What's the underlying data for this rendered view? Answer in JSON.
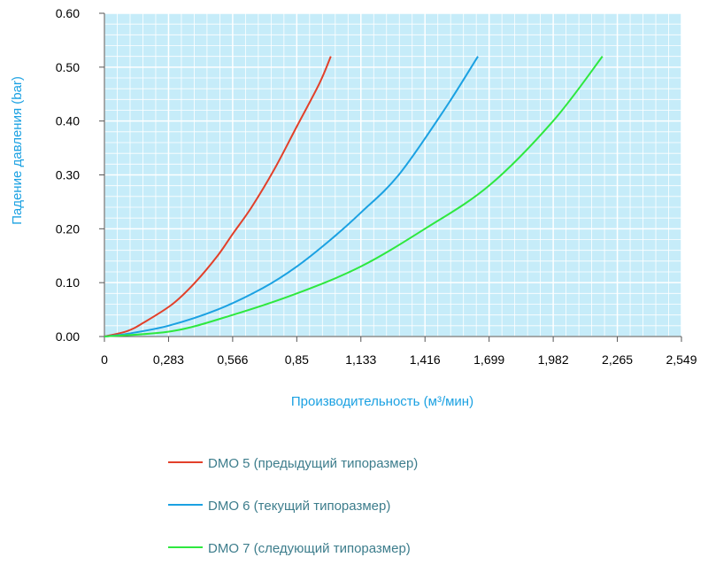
{
  "chart_data": {
    "type": "line",
    "xlabel": "Производительность (м³/мин)",
    "ylabel": "Падение давления (bar)",
    "xlim": [
      0,
      2.549
    ],
    "ylim": [
      0,
      0.6
    ],
    "x_tick_labels": [
      "0",
      "0,283",
      "0,566",
      "0,85",
      "1,133",
      "1,416",
      "1,699",
      "1,982",
      "2,265",
      "2,549"
    ],
    "y_tick_labels": [
      "0.00",
      "0.10",
      "0.20",
      "0.30",
      "0.40",
      "0.50",
      "0.60"
    ],
    "grid": true,
    "legend_position": "bottom",
    "plot_background": "#c6ecf9",
    "grid_color": "#ffffff",
    "series": [
      {
        "name": "DMO 5 (предыдущий типоразмер)",
        "color": "#e2402a",
        "x": [
          0,
          0.1,
          0.17,
          0.3,
          0.4,
          0.5,
          0.566,
          0.65,
          0.75,
          0.85,
          0.95,
          1.0
        ],
        "y": [
          0,
          0.01,
          0.025,
          0.06,
          0.1,
          0.15,
          0.19,
          0.24,
          0.31,
          0.39,
          0.47,
          0.52
        ]
      },
      {
        "name": "DMO 6 (текущий типоразмер)",
        "color": "#1ba1e2",
        "x": [
          0,
          0.1,
          0.283,
          0.5,
          0.7,
          0.85,
          1.0,
          1.133,
          1.3,
          1.5,
          1.65
        ],
        "y": [
          0,
          0.005,
          0.02,
          0.05,
          0.09,
          0.13,
          0.18,
          0.23,
          0.3,
          0.42,
          0.52
        ]
      },
      {
        "name": "DMO 7 (следующий типоразмер)",
        "color": "#2ee83f",
        "x": [
          0,
          0.3,
          0.566,
          0.85,
          1.133,
          1.416,
          1.699,
          1.982,
          2.2
        ],
        "y": [
          0,
          0.01,
          0.04,
          0.08,
          0.13,
          0.2,
          0.28,
          0.4,
          0.52
        ]
      }
    ]
  }
}
